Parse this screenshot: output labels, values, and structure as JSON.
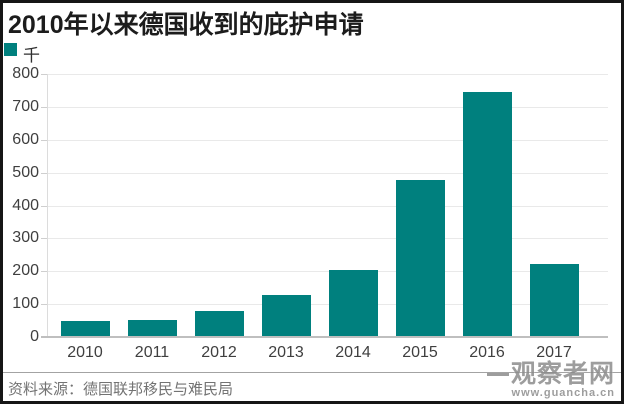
{
  "page": {
    "title": "2010年以来德国收到的庇护申请",
    "legend_label": "千",
    "source_label": "资料来源：德国联邦移民与难民局"
  },
  "watermark": {
    "site_name": "观察者网",
    "site_url": "www.guancha.cn"
  },
  "colors": {
    "bar": "#00807e",
    "gridline": "#e9e9e9",
    "axis_line": "#bfbfbf",
    "axis_text": "#3f3f3f",
    "source_text": "#737373",
    "watermark_text": "#8c8c8c"
  },
  "chart_data": {
    "type": "bar",
    "title": "2010年以来德国收到的庇护申请",
    "unit_legend": "千",
    "categories": [
      "2010",
      "2011",
      "2012",
      "2013",
      "2014",
      "2015",
      "2016",
      "2017"
    ],
    "values": [
      49,
      53,
      78,
      127,
      203,
      477,
      746,
      223
    ],
    "xlabel": "",
    "ylabel": "",
    "ylim": [
      0,
      800
    ],
    "ytick_step": 100,
    "yticks": [
      0,
      100,
      200,
      300,
      400,
      500,
      600,
      700,
      800
    ],
    "grid": true,
    "legend_position": "top-left",
    "source": "资料来源：德国联邦移民与难民局"
  }
}
